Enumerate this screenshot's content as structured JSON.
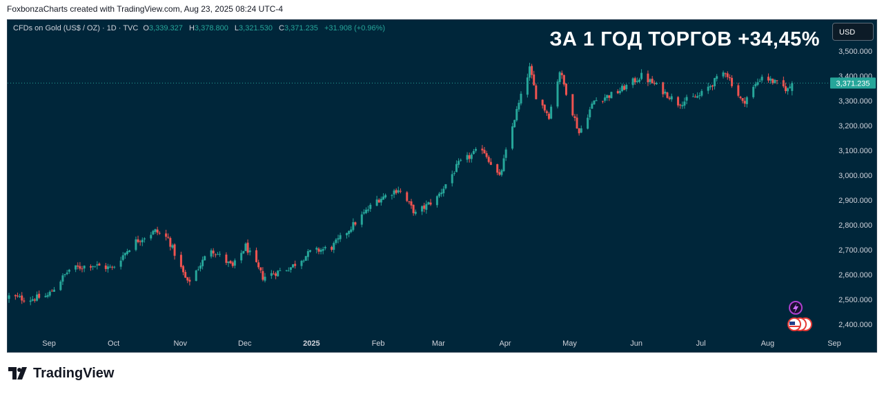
{
  "caption": "FoxbonzaCharts created with TradingView.com, Aug 23, 2025 08:24 UTC-4",
  "legend": {
    "symbol": "CFDs on Gold (US$ / OZ) · 1D · TVC",
    "o_label": "O",
    "o_value": "3,339.327",
    "h_label": "H",
    "h_value": "3,378.800",
    "l_label": "L",
    "l_value": "3,321.530",
    "c_label": "C",
    "c_value": "3,371.235",
    "change": "+31.908 (+0.96%)"
  },
  "headline": "ЗА 1 ГОД ТОРГОВ +34,45%",
  "currency": "USD",
  "brand": "TradingView",
  "colors": {
    "up": "#26a69a",
    "down": "#ef5350",
    "background": "#00263a",
    "axis_text": "#d1d4dc"
  },
  "chart_data": {
    "type": "candlestick",
    "symbol": "CFDs on Gold (US$ / OZ)",
    "interval": "1D",
    "y_ticks": [
      "2,400.000",
      "2,500.000",
      "2,600.000",
      "2,700.000",
      "2,800.000",
      "2,900.000",
      "3,000.000",
      "3,100.000",
      "3,200.000",
      "3,300.000",
      "3,400.000",
      "3,500.000"
    ],
    "y_tick_values": [
      2400,
      2500,
      2600,
      2700,
      2800,
      2900,
      3000,
      3100,
      3200,
      3300,
      3400,
      3500
    ],
    "ylim": [
      2360,
      3570
    ],
    "x_ticks": [
      "Sep",
      "Oct",
      "Nov",
      "Dec",
      "2025",
      "Feb",
      "Mar",
      "Apr",
      "May",
      "Jun",
      "Jul",
      "Aug",
      "Sep"
    ],
    "last_price": 3371.235,
    "last_price_label": "3,371.235",
    "close_path": [
      [
        "2024-08-23",
        2512
      ],
      [
        "2024-09-01",
        2500
      ],
      [
        "2024-09-10",
        2515
      ],
      [
        "2024-09-20",
        2620
      ],
      [
        "2024-09-30",
        2640
      ],
      [
        "2024-10-10",
        2625
      ],
      [
        "2024-10-20",
        2730
      ],
      [
        "2024-10-30",
        2775
      ],
      [
        "2024-11-05",
        2745
      ],
      [
        "2024-11-14",
        2565
      ],
      [
        "2024-11-25",
        2705
      ],
      [
        "2024-12-05",
        2630
      ],
      [
        "2024-12-11",
        2715
      ],
      [
        "2024-12-19",
        2590
      ],
      [
        "2025-01-01",
        2630
      ],
      [
        "2025-01-10",
        2690
      ],
      [
        "2025-01-20",
        2710
      ],
      [
        "2025-01-30",
        2800
      ],
      [
        "2025-02-10",
        2900
      ],
      [
        "2025-02-20",
        2945
      ],
      [
        "2025-02-28",
        2845
      ],
      [
        "2025-03-10",
        2910
      ],
      [
        "2025-03-20",
        3045
      ],
      [
        "2025-03-31",
        3110
      ],
      [
        "2025-04-08",
        2990
      ],
      [
        "2025-04-15",
        3230
      ],
      [
        "2025-04-22",
        3430
      ],
      [
        "2025-04-25",
        3320
      ],
      [
        "2025-05-01",
        3240
      ],
      [
        "2025-05-06",
        3420
      ],
      [
        "2025-05-15",
        3170
      ],
      [
        "2025-05-22",
        3300
      ],
      [
        "2025-06-01",
        3330
      ],
      [
        "2025-06-13",
        3400
      ],
      [
        "2025-06-20",
        3360
      ],
      [
        "2025-06-30",
        3290
      ],
      [
        "2025-07-10",
        3320
      ],
      [
        "2025-07-22",
        3420
      ],
      [
        "2025-07-30",
        3290
      ],
      [
        "2025-08-08",
        3400
      ],
      [
        "2025-08-20",
        3345
      ],
      [
        "2025-08-22",
        3371
      ]
    ]
  }
}
